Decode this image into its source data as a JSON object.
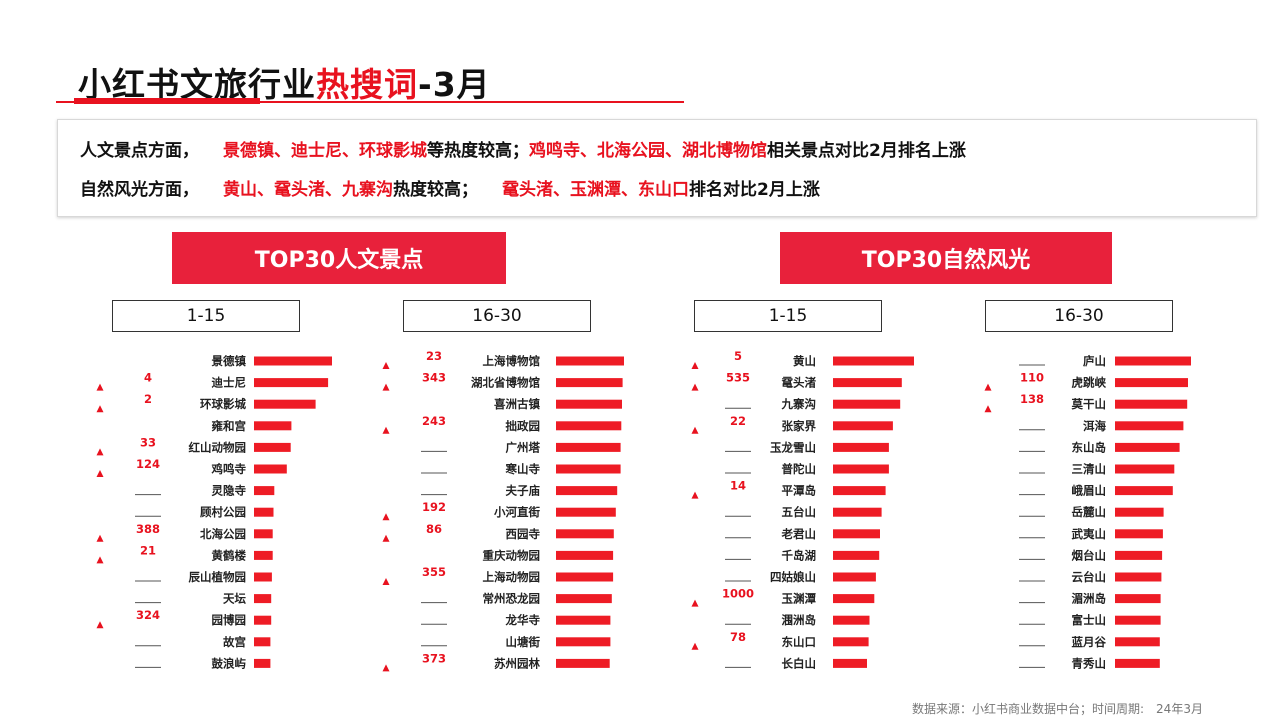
{
  "title": {
    "part1": "小红书文旅行业",
    "part2": "热搜词",
    "part3": "-3月"
  },
  "summary": {
    "line1": {
      "lead": "人文景点方面，",
      "red1": "景德镇、迪士尼、环球影城",
      "mid": "等热度较高；",
      "red2": "鸡鸣寺、北海公园、湖北博物馆",
      "tail": "相关景点对比2月排名上涨"
    },
    "line2": {
      "lead": "自然风光方面，",
      "red1": "黄山、鼋头渚、九寨沟",
      "mid": "热度较高；",
      "red2": "鼋头渚、玉渊潭、东山口",
      "tail": "排名对比2月上涨"
    }
  },
  "sections": {
    "cultural": "TOP30人文景点",
    "nature": "TOP30自然风光"
  },
  "ranges": {
    "r1": "1-15",
    "r2": "16-30",
    "r3": "1-15",
    "r4": "16-30"
  },
  "colors": {
    "accent": "#e8121f",
    "bar": "#ee1c25",
    "header_bg": "#e8213b"
  },
  "footer": "数据来源：小红书商业数据中台；时间周期:　24年3月",
  "chart_data": [
    {
      "type": "bar",
      "orientation": "horizontal",
      "title": "TOP30人文景点 1-15",
      "categories": [
        "景德镇",
        "迪士尼",
        "环球影城",
        "雍和宫",
        "红山动物园",
        "鸡鸣寺",
        "灵隐寺",
        "顾村公园",
        "北海公园",
        "黄鹤楼",
        "辰山植物园",
        "天坛",
        "园博园",
        "故宫",
        "鼓浪屿"
      ],
      "values": [
        100,
        95,
        79,
        48,
        47,
        42,
        26,
        25,
        24,
        24,
        23,
        22,
        22,
        21,
        21
      ],
      "rank_change": [
        "",
        "4",
        "2",
        "",
        "33",
        "124",
        "——",
        "——",
        "388",
        "21",
        "——",
        "——",
        "324",
        "——",
        "——"
      ],
      "rank_up": [
        false,
        true,
        true,
        false,
        true,
        true,
        false,
        false,
        true,
        true,
        false,
        false,
        true,
        false,
        false
      ]
    },
    {
      "type": "bar",
      "orientation": "horizontal",
      "title": "TOP30人文景点 16-30",
      "categories": [
        "上海博物馆",
        "湖北省博物馆",
        "喜洲古镇",
        "拙政园",
        "广州塔",
        "寒山寺",
        "夫子庙",
        "小河直街",
        "西园寺",
        "重庆动物园",
        "上海动物园",
        "常州恐龙园",
        "龙华寺",
        "山塘街",
        "苏州园林"
      ],
      "values": [
        100,
        98,
        97,
        96,
        95,
        95,
        90,
        88,
        85,
        84,
        84,
        82,
        80,
        80,
        79
      ],
      "rank_change": [
        "23",
        "343",
        "",
        "243",
        "——",
        "——",
        "——",
        "192",
        "86",
        "",
        "355",
        "——",
        "——",
        "——",
        "373"
      ],
      "rank_up": [
        true,
        true,
        false,
        true,
        false,
        false,
        false,
        true,
        true,
        false,
        true,
        false,
        false,
        false,
        true
      ]
    },
    {
      "type": "bar",
      "orientation": "horizontal",
      "title": "TOP30自然风光 1-15",
      "categories": [
        "黄山",
        "鼋头渚",
        "九寨沟",
        "张家界",
        "玉龙雪山",
        "普陀山",
        "平潭岛",
        "五台山",
        "老君山",
        "千岛湖",
        "四姑娘山",
        "玉渊潭",
        "涠洲岛",
        "东山口",
        "长白山"
      ],
      "values": [
        100,
        85,
        83,
        74,
        69,
        69,
        65,
        60,
        58,
        57,
        53,
        51,
        45,
        44,
        42
      ],
      "rank_change": [
        "5",
        "535",
        "——",
        "22",
        "——",
        "——",
        "14",
        "——",
        "——",
        "——",
        "——",
        "1000",
        "——",
        "78",
        "——"
      ],
      "rank_up": [
        true,
        true,
        false,
        true,
        false,
        false,
        true,
        false,
        false,
        false,
        false,
        true,
        false,
        true,
        false
      ]
    },
    {
      "type": "bar",
      "orientation": "horizontal",
      "title": "TOP30自然风光 16-30",
      "categories": [
        "庐山",
        "虎跳峡",
        "莫干山",
        "洱海",
        "东山岛",
        "三清山",
        "峨眉山",
        "岳麓山",
        "武夷山",
        "烟台山",
        "云台山",
        "湄洲岛",
        "富士山",
        "蓝月谷",
        "青秀山"
      ],
      "values": [
        100,
        96,
        95,
        90,
        85,
        78,
        76,
        64,
        63,
        62,
        61,
        60,
        60,
        59,
        59
      ],
      "rank_change": [
        "——",
        "110",
        "138",
        "——",
        "——",
        "——",
        "——",
        "——",
        "——",
        "——",
        "——",
        "——",
        "——",
        "——",
        "——"
      ],
      "rank_up": [
        false,
        true,
        true,
        false,
        false,
        false,
        false,
        false,
        false,
        false,
        false,
        false,
        false,
        false,
        false
      ]
    }
  ]
}
